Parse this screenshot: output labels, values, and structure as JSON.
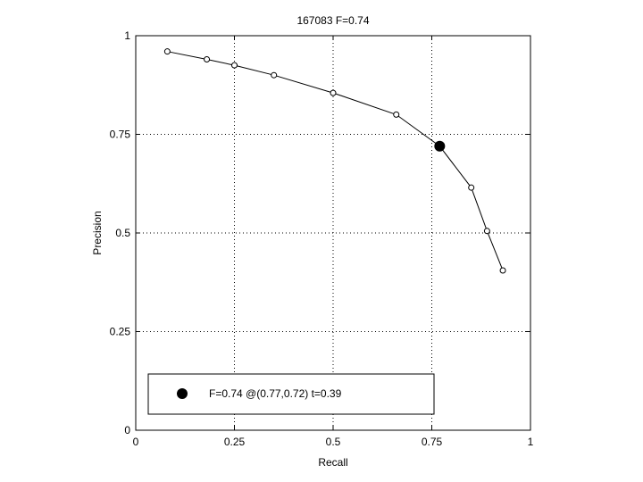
{
  "chart_data": {
    "type": "line",
    "title": "167083 F=0.74",
    "xlabel": "Recall",
    "ylabel": "Precision",
    "xlim": [
      0,
      1
    ],
    "ylim": [
      0,
      1
    ],
    "grid": true,
    "legend_position": "bottom-left",
    "xticks": [
      "0",
      "0.25",
      "0.5",
      "0.75",
      "1"
    ],
    "yticks": [
      "0",
      "0.25",
      "0.5",
      "0.75",
      "1"
    ],
    "series": [
      {
        "x": [
          0.08,
          0.18,
          0.25,
          0.35,
          0.5,
          0.66,
          0.77,
          0.85,
          0.89,
          0.93
        ],
        "y": [
          0.96,
          0.94,
          0.925,
          0.9,
          0.855,
          0.8,
          0.72,
          0.615,
          0.505,
          0.405
        ],
        "marker": "circle-open",
        "color": "#000000"
      }
    ],
    "highlight_point": {
      "x": 0.77,
      "y": 0.72,
      "marker": "circle-filled",
      "legend": "F=0.74 @(0.77,0.72) t=0.39"
    }
  }
}
